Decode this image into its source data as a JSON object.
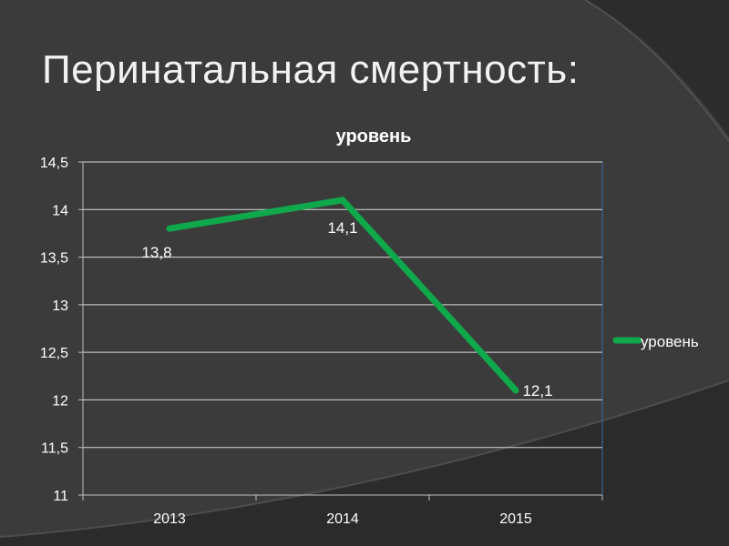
{
  "slide": {
    "title": "Перинатальная смертность:"
  },
  "colors": {
    "background": "#3b3b3b",
    "series_line": "#0fa84a",
    "text": "#ffffff"
  },
  "chart_data": {
    "type": "line",
    "title": "уровень",
    "xlabel": "",
    "ylabel": "",
    "categories": [
      "2013",
      "2014",
      "2015"
    ],
    "series": [
      {
        "name": "уровень",
        "values": [
          13.8,
          14.1,
          12.1
        ],
        "data_labels": [
          "13,8",
          "14,1",
          "12,1"
        ]
      }
    ],
    "ylim": [
      11,
      14.5
    ],
    "y_ticks": [
      11,
      11.5,
      12,
      12.5,
      13,
      13.5,
      14,
      14.5
    ],
    "y_tick_labels": [
      "11",
      "11,5",
      "12",
      "12,5",
      "13",
      "13,5",
      "14",
      "14,5"
    ],
    "grid": true,
    "legend_position": "right"
  }
}
